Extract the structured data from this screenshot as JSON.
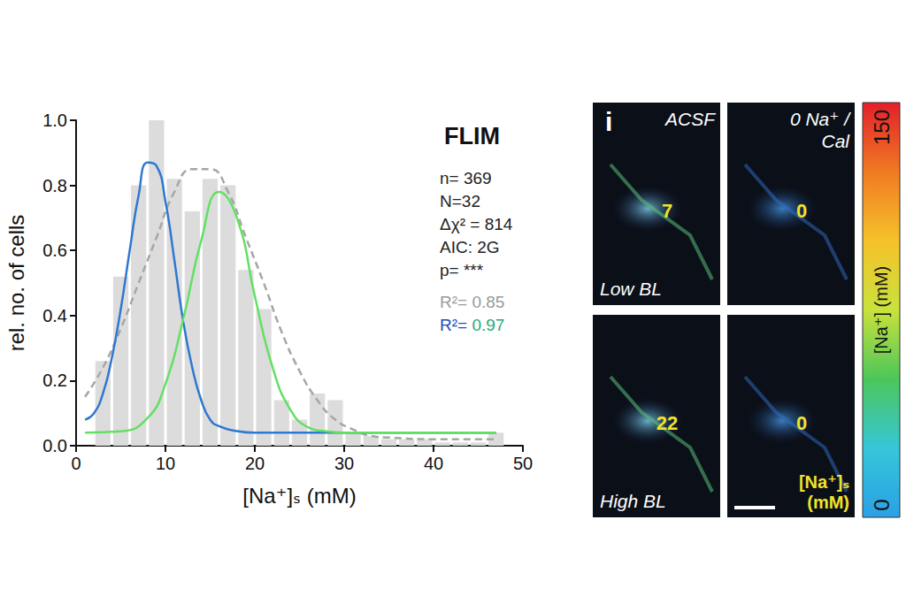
{
  "chart_data": {
    "type": "histogram",
    "title": "FLIM",
    "x_label": "[Na⁺]ₛ (mM)",
    "y_label": "rel. no. of cells",
    "xlim": [
      0,
      50
    ],
    "xticks": [
      0,
      10,
      20,
      30,
      40,
      50
    ],
    "ylim": [
      0,
      1
    ],
    "yticks": [
      {
        "value": 0,
        "label": "0.0"
      },
      0.2,
      0.4,
      0.6,
      0.8,
      {
        "value": 1,
        "label": "1.0"
      }
    ],
    "grid": false,
    "annotations": [
      [
        {
          "text": "n= 369",
          "color": "#222222"
        }
      ],
      [
        {
          "text": "N=32",
          "color": "#222222"
        }
      ],
      [
        {
          "text": "Δχ² = 814",
          "color": "#222222"
        }
      ],
      [
        {
          "text": "AIC: 2G",
          "color": "#222222"
        }
      ],
      [
        {
          "text": "p= ***",
          "color": "#222222"
        }
      ],
      [
        {
          "text": "R²= 0.85",
          "color": "#9a9a9a"
        }
      ],
      [
        {
          "text": "R²=",
          "color": "#2449b8"
        },
        {
          "text": " 0.97",
          "color": "#2aa876"
        }
      ]
    ],
    "series": [
      {
        "type": "histogram",
        "color": "#dcdcdc",
        "bins": [
          2,
          4,
          6,
          8,
          10,
          12,
          14,
          16,
          18,
          20,
          22,
          24,
          26,
          28,
          30,
          32,
          34,
          36,
          38,
          40,
          42,
          44,
          46,
          48
        ],
        "counts": [
          0.26,
          0.52,
          0.8,
          1.0,
          0.82,
          0.72,
          0.82,
          0.8,
          0.54,
          0.42,
          0.14,
          0.08,
          0.16,
          0.14,
          0.04,
          0.03,
          0.02,
          0.02,
          0.02,
          0.01,
          0.01,
          0.01,
          0.04
        ]
      },
      {
        "type": "line",
        "color": "#a6a6a6",
        "line_style": "dashed",
        "x": [
          1,
          3,
          5,
          7,
          9,
          11,
          13,
          15,
          17,
          19,
          21,
          23,
          25,
          27,
          29,
          31,
          33,
          35,
          40,
          47
        ],
        "values": [
          0.15,
          0.24,
          0.36,
          0.5,
          0.64,
          0.78,
          0.85,
          0.85,
          0.78,
          0.64,
          0.5,
          0.35,
          0.23,
          0.14,
          0.08,
          0.05,
          0.03,
          0.025,
          0.02,
          0.02
        ]
      },
      {
        "type": "line",
        "color": "#2f78d0",
        "line_style": "solid",
        "x": [
          1,
          2,
          3,
          4,
          5,
          6,
          7,
          8,
          9,
          10,
          11,
          12,
          13,
          14,
          15,
          16,
          18,
          20,
          25,
          30,
          35,
          40,
          47
        ],
        "values": [
          0.08,
          0.1,
          0.16,
          0.27,
          0.42,
          0.6,
          0.77,
          0.87,
          0.86,
          0.75,
          0.57,
          0.38,
          0.24,
          0.14,
          0.08,
          0.06,
          0.045,
          0.04,
          0.04,
          0.04,
          0.04,
          0.04,
          0.04
        ]
      },
      {
        "type": "line",
        "color": "#63e063",
        "line_style": "solid",
        "x": [
          1,
          5,
          8,
          10,
          12,
          14,
          16,
          18,
          20,
          22,
          24,
          26,
          28,
          30,
          35,
          40,
          47
        ],
        "values": [
          0.04,
          0.044,
          0.085,
          0.19,
          0.39,
          0.63,
          0.78,
          0.7,
          0.46,
          0.24,
          0.11,
          0.056,
          0.044,
          0.04,
          0.04,
          0.04,
          0.04
        ]
      }
    ]
  },
  "image_panel": {
    "letter": "i",
    "tiles": [
      {
        "condition": "ACSF",
        "group": "Low BL",
        "value": 7
      },
      {
        "condition": "0 Na⁺ / Cal",
        "value": 0
      },
      {
        "group": "High BL",
        "value": 22
      },
      {
        "value": 0,
        "label": "[Na⁺]ₛ (mM)"
      }
    ],
    "colorbar": {
      "range": [
        0,
        150
      ],
      "label": "[Na⁺] (mM)",
      "colors": [
        "#2aa0e6",
        "#36c6d8",
        "#4cc65a",
        "#c8e23c",
        "#f6c22a",
        "#f07a22",
        "#e3202a"
      ]
    }
  }
}
